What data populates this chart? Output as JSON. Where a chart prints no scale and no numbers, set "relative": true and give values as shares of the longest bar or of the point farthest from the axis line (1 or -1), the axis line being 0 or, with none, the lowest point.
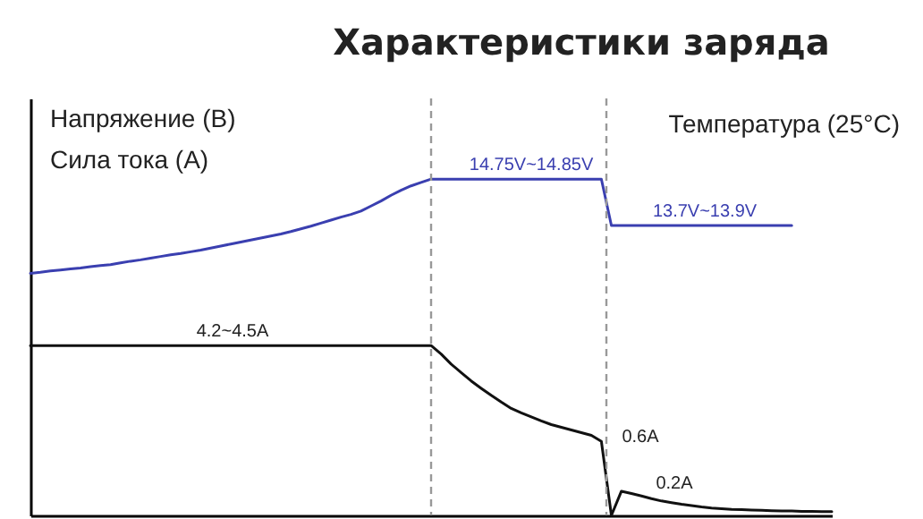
{
  "chart_data": {
    "type": "line",
    "title": "Характеристики заряда",
    "relative": true,
    "tick_labels": false,
    "legend": false,
    "grid": false,
    "marker": "none",
    "line_style": "solid",
    "categories": [
      null,
      null,
      null,
      null,
      null,
      null,
      null,
      null,
      null,
      null,
      null,
      null,
      null,
      null,
      null,
      null,
      null,
      null,
      null,
      null,
      null,
      null,
      null,
      null,
      null,
      null,
      null,
      null,
      null,
      null,
      null,
      null,
      null,
      null,
      null,
      null,
      null,
      null,
      null,
      null,
      null,
      null,
      null,
      null,
      null,
      null,
      null,
      null,
      null,
      null,
      null,
      null,
      null,
      null,
      null,
      null,
      null,
      null,
      null,
      null,
      null,
      null,
      null,
      null,
      null,
      null,
      null,
      null,
      null,
      null,
      null,
      null,
      null,
      null,
      null,
      null,
      null,
      null,
      null,
      null,
      null
    ],
    "annotations": [
      "Напряжение (В)",
      "Сила тока (А)",
      "Температура (25°C)",
      "14.75V~14.85V",
      "13.7V~13.9V",
      "4.2~4.5A",
      "0.6A",
      "0.2A"
    ],
    "series": [
      {
        "color": "#3a3fb0",
        "values": [
          0.72,
          0.723,
          0.727,
          0.73,
          0.733,
          0.736,
          0.74,
          0.743,
          0.746,
          0.751,
          0.756,
          0.76,
          0.765,
          0.77,
          0.775,
          0.779,
          0.784,
          0.789,
          0.795,
          0.801,
          0.807,
          0.813,
          0.819,
          0.825,
          0.831,
          0.837,
          0.844,
          0.852,
          0.86,
          0.869,
          0.878,
          0.887,
          0.895,
          0.905,
          0.92,
          0.935,
          0.952,
          0.967,
          0.98,
          0.99,
          1,
          1,
          1,
          1,
          1,
          1,
          1,
          1,
          1,
          1,
          1,
          1,
          1,
          1,
          1,
          1,
          1,
          1,
          0.862,
          0.862,
          0.862,
          0.862,
          0.862,
          0.862,
          0.862,
          0.862,
          0.862,
          0.862,
          0.862,
          0.862,
          0.862,
          0.862,
          0.862,
          0.862,
          0.862,
          0.862,
          0.862,
          null,
          null,
          null,
          null
        ]
      },
      {
        "color": "#111111",
        "values": [
          0.505,
          0.505,
          0.505,
          0.505,
          0.505,
          0.505,
          0.505,
          0.505,
          0.505,
          0.505,
          0.505,
          0.505,
          0.505,
          0.505,
          0.505,
          0.505,
          0.505,
          0.505,
          0.505,
          0.505,
          0.505,
          0.505,
          0.505,
          0.505,
          0.505,
          0.505,
          0.505,
          0.505,
          0.505,
          0.505,
          0.505,
          0.505,
          0.505,
          0.505,
          0.505,
          0.505,
          0.505,
          0.505,
          0.505,
          0.505,
          0.505,
          0.48,
          0.45,
          0.425,
          0.4,
          0.378,
          0.357,
          0.337,
          0.318,
          0.305,
          0.293,
          0.281,
          0.27,
          0.262,
          0.254,
          0.246,
          0.238,
          0.22,
          0,
          0.072,
          0.065,
          0.058,
          0.05,
          0.043,
          0.038,
          0.033,
          0.029,
          0.025,
          0.022,
          0.02,
          0.018,
          0.017,
          0.016,
          0.015,
          0.014,
          0.013,
          0.013,
          0.012,
          0.012,
          0.011,
          0.011
        ]
      }
    ]
  }
}
